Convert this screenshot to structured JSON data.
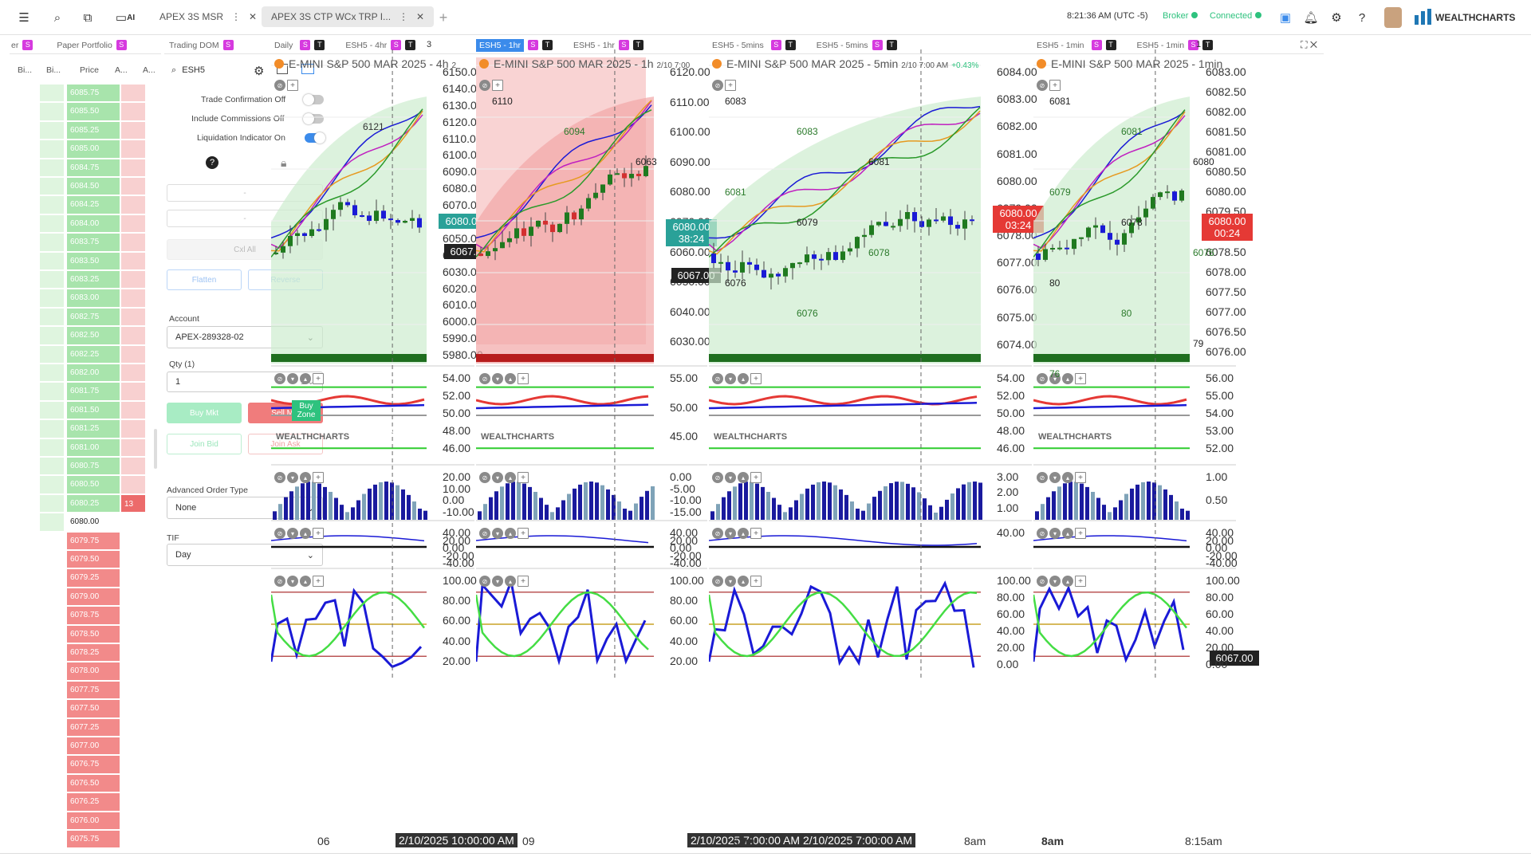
{
  "topbar": {
    "tabs": [
      {
        "label": "APEX 3S MSR"
      },
      {
        "label": "APEX 3S CTP WCx TRP I..."
      }
    ],
    "time": "8:21:36 AM",
    "timezone": "(UTC -5)",
    "broker_label": "Broker",
    "connected_label": "Connected",
    "brand": "WEALTHCHARTS",
    "ai_label": "AI",
    "add_tab": "+"
  },
  "panels": {
    "ladder_tabs": [
      "er",
      "Paper Portfolio",
      "Trading DOM"
    ],
    "ladder_count": "1",
    "columns": [
      "Bi...",
      "Bi...",
      "Price",
      "A...",
      "A..."
    ],
    "prices": [
      "6085.75",
      "6085.50",
      "6085.25",
      "6085.00",
      "6084.75",
      "6084.50",
      "6084.25",
      "6084.00",
      "6083.75",
      "6083.50",
      "6083.25",
      "6083.00",
      "6082.75",
      "6082.50",
      "6082.25",
      "6082.00",
      "6081.75",
      "6081.50",
      "6081.25",
      "6081.00",
      "6080.75",
      "6080.50",
      "6080.25",
      "6080.00",
      "6079.75",
      "6079.50",
      "6079.25",
      "6079.00",
      "6078.75",
      "6078.50",
      "6078.25",
      "6078.00",
      "6077.75",
      "6077.50",
      "6077.25",
      "6077.00",
      "6076.75",
      "6076.50",
      "6076.25",
      "6076.00",
      "6075.75"
    ],
    "ask_size": "13",
    "colors": {
      "bid_green": "#c6efc9",
      "ask_red": "#f4a6a6",
      "last_price_row": "#ffffff"
    }
  },
  "dom": {
    "symbol": "ESH5",
    "trade_confirmation": "Trade Confirmation Off",
    "include_commissions": "Include Commissions Off",
    "liquidation_indicator": "Liquidation Indicator On",
    "dash1": "-",
    "dash2": "-",
    "cxl_all": "Cxl All",
    "flatten": "Flatten",
    "reverse": "Reverse",
    "account_label": "Account",
    "account_value": "APEX-289328-02",
    "qty_label": "Qty (1)",
    "qty_value": "1",
    "buy_mkt": "Buy Mkt",
    "sell_mkt": "Sell Mkt",
    "join_bid": "Join Bid",
    "join_ask": "Join Ask",
    "adv_order_label": "Advanced Order Type",
    "adv_order_value": "None",
    "tif_label": "TIF",
    "tif_value": "Day"
  },
  "charts": [
    {
      "tab_a": "Daily",
      "tab_b": "ESH5 - 4hr",
      "count": "3",
      "title": "E-MINI S&P 500 MAR 2025 - 4h",
      "title_suffix": "2",
      "y_labels": [
        "6150.00",
        "6140.00",
        "6130.00",
        "6120.00",
        "6110.00",
        "6100.00",
        "6090.00",
        "6080.00",
        "6070.00",
        "6060.00",
        "6050.00",
        "6040.00",
        "6030.00",
        "6020.00",
        "6010.00",
        "6000.00",
        "5990.00",
        "5980.00"
      ],
      "last_price": "6080.00",
      "cursor_price": "6067.00",
      "marker_high": "6121",
      "marker_low": "6081",
      "buy_zone": "Buy Zone",
      "osc1": [
        "54.00",
        "52.00",
        "50.00",
        "48.00",
        "46.00"
      ],
      "osc2": [
        "20.00",
        "10.00",
        "0.00",
        "-10.00"
      ],
      "osc3": [
        "40.00",
        "20.00",
        "0.00",
        "-20.00",
        "-40.00"
      ],
      "osc4": [
        "100.00",
        "80.00",
        "60.00",
        "40.00",
        "20.00"
      ],
      "x_left": "06",
      "x_time": "2/10/2025 10:00:00 AM"
    },
    {
      "tab_a": "ESH5 - 1hr",
      "tab_b": "ESH5 - 1hr",
      "title": "E-MINI S&P 500 MAR 2025 - 1h",
      "title_suffix": "2/10 7:00",
      "y_labels": [
        "6120.00",
        "6110.00",
        "6100.00",
        "6090.00",
        "6080.00",
        "6070.00",
        "6060.00",
        "6050.00",
        "6040.00",
        "6030.00"
      ],
      "last_price": "6080.00",
      "countdown": "38:24",
      "cursor_price": "6067.00",
      "levels": [
        "6110",
        "6094",
        "6063"
      ],
      "osc1": [
        "55.00",
        "50.00",
        "45.00"
      ],
      "osc2": [
        "0.00",
        "-5.00",
        "-10.00",
        "-15.00"
      ],
      "osc3": [
        "40.00",
        "20.00",
        "0.00",
        "-20.00",
        "-40.00"
      ],
      "osc4": [
        "100.00",
        "80.00",
        "60.00",
        "40.00",
        "20.00"
      ],
      "x_left": "09",
      "x_time": "2/10/2025 7:00:00 AM"
    },
    {
      "tab_a": "ESH5 - 5mins",
      "tab_b": "ESH5 - 5mins",
      "title": "E-MINI S&P 500 MAR 2025 - 5min",
      "title_suffix": "2/10 7:00 AM",
      "change": "+0.43%",
      "y_labels": [
        "6084.00",
        "6083.00",
        "6082.00",
        "6081.00",
        "6080.00",
        "6079.00",
        "6078.00",
        "6077.00",
        "6076.00",
        "6075.00",
        "6074.00"
      ],
      "last_price": "6080.00",
      "countdown": "03:24",
      "cursor_price": "6067.00",
      "levels": [
        "6083",
        "6083",
        "6081",
        "6081",
        "6079",
        "6078",
        "6076",
        "6076"
      ],
      "osc1": [
        "54.00",
        "52.00",
        "50.00",
        "48.00",
        "46.00"
      ],
      "osc2": [
        "3.00",
        "2.00",
        "1.00"
      ],
      "osc3": [
        "40.00"
      ],
      "osc4": [
        "100.00",
        "80.00",
        "60.00",
        "40.00",
        "20.00",
        "0.00"
      ],
      "x_left": "6am",
      "x_time": "2/10/2025 7:00:00 AM",
      "x_right": "8am"
    },
    {
      "tab_a": "ESH5 - 1min",
      "tab_b": "ESH5 - 1min",
      "count": "1",
      "title": "E-MINI S&P 500 MAR 2025 - 1min",
      "y_labels": [
        "6083.00",
        "6082.50",
        "6082.00",
        "6081.50",
        "6081.00",
        "6080.50",
        "6080.00",
        "6079.50",
        "6079.00",
        "6078.50",
        "6078.00",
        "6077.50",
        "6077.00",
        "6076.50",
        "6076.00"
      ],
      "last_price": "6080.00",
      "countdown": "00:24",
      "levels": [
        "6081",
        "6081",
        "6080",
        "6079",
        "6078",
        "6076",
        "80",
        "80",
        "79",
        "76"
      ],
      "osc1": [
        "56.00",
        "55.00",
        "54.00",
        "53.00",
        "52.00"
      ],
      "osc2": [
        "1.00",
        "0.50"
      ],
      "osc3": [
        "40.00",
        "20.00",
        "0.00",
        "-20.00",
        "-40.00"
      ],
      "osc4": [
        "100.00",
        "80.00",
        "60.00",
        "40.00",
        "20.00",
        "0.00"
      ],
      "x_left": "8am",
      "x_right": "8:15am"
    }
  ],
  "watermark": "WEALTHCHARTS",
  "colors": {
    "accent_blue": "#3b8beb",
    "up_green": "#1f7a1f",
    "down_blue": "#1a1ad6",
    "down_red": "#d32f2f",
    "price_tag_red": "#e53935",
    "price_tag_teal": "#2aa198"
  }
}
